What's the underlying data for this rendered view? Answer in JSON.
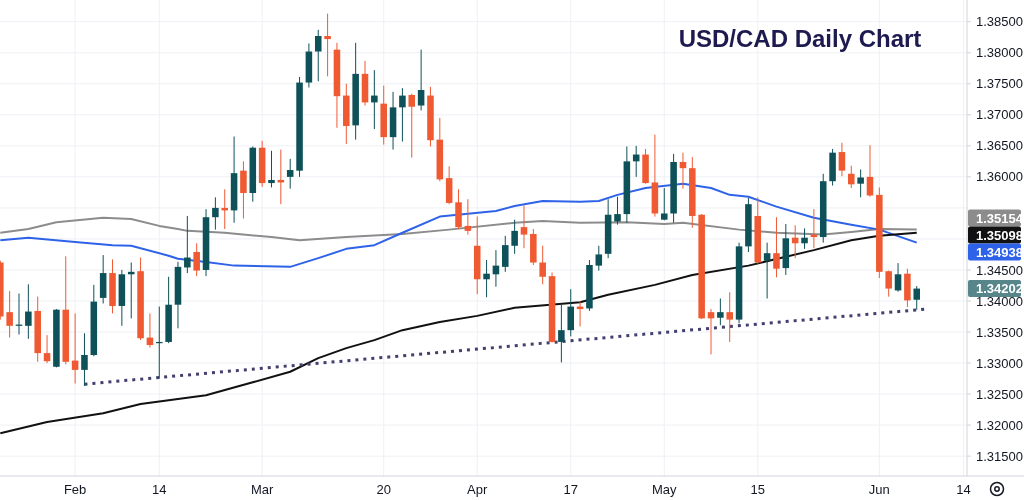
{
  "chart_data": {
    "type": "candlestick",
    "title": "USD/CAD Daily Chart",
    "categories": [
      null,
      null,
      null,
      null,
      null,
      null,
      null,
      null,
      "Feb",
      null,
      null,
      null,
      null,
      null,
      null,
      null,
      null,
      "14",
      null,
      null,
      null,
      null,
      null,
      null,
      null,
      null,
      null,
      null,
      "Mar",
      null,
      null,
      null,
      null,
      null,
      null,
      null,
      null,
      null,
      null,
      null,
      null,
      "20",
      null,
      null,
      null,
      null,
      null,
      null,
      null,
      null,
      null,
      "Apr",
      null,
      null,
      null,
      null,
      null,
      null,
      null,
      null,
      null,
      "17",
      null,
      null,
      null,
      null,
      null,
      null,
      null,
      null,
      null,
      "May",
      null,
      null,
      null,
      null,
      null,
      null,
      null,
      null,
      null,
      "15",
      null,
      null,
      null,
      null,
      null,
      null,
      null,
      null,
      null,
      null,
      null,
      null,
      "Jun",
      null,
      null,
      null,
      null,
      null,
      null,
      null,
      null,
      "14"
    ],
    "ohlc": [
      [
        1.3462,
        1.3465,
        1.337,
        1.3375
      ],
      [
        1.3382,
        1.3416,
        1.3341,
        1.336
      ],
      [
        1.336,
        1.3412,
        1.3346,
        1.3362
      ],
      [
        1.336,
        1.3427,
        1.3339,
        1.3383
      ],
      [
        1.3384,
        1.3407,
        1.3302,
        1.3316
      ],
      [
        1.3316,
        1.3345,
        1.33,
        1.3303
      ],
      [
        1.3294,
        1.3387,
        1.3293,
        1.3386
      ],
      [
        1.3386,
        1.3472,
        1.3298,
        1.3302
      ],
      [
        1.3304,
        1.338,
        1.3267,
        1.3289
      ],
      [
        1.3289,
        1.3348,
        1.3263,
        1.3313
      ],
      [
        1.3313,
        1.3426,
        1.3311,
        1.3399
      ],
      [
        1.3405,
        1.3474,
        1.3396,
        1.3445
      ],
      [
        1.3445,
        1.3467,
        1.338,
        1.3392
      ],
      [
        1.3392,
        1.345,
        1.336,
        1.3443
      ],
      [
        1.3443,
        1.3462,
        1.3372,
        1.3447
      ],
      [
        1.3448,
        1.347,
        1.3337,
        1.334
      ],
      [
        1.3341,
        1.338,
        1.3325,
        1.3329
      ],
      [
        1.3332,
        1.3391,
        1.3275,
        1.3334
      ],
      [
        1.3334,
        1.3439,
        1.3332,
        1.3394
      ],
      [
        1.3394,
        1.3463,
        1.3356,
        1.3455
      ],
      [
        1.3454,
        1.3537,
        1.3445,
        1.347
      ],
      [
        1.3479,
        1.3493,
        1.344,
        1.3449
      ],
      [
        1.345,
        1.3548,
        1.344,
        1.3535
      ],
      [
        1.3535,
        1.3567,
        1.3515,
        1.355
      ],
      [
        1.355,
        1.358,
        1.3516,
        1.3546
      ],
      [
        1.3546,
        1.3665,
        1.3526,
        1.3606
      ],
      [
        1.361,
        1.3625,
        1.3533,
        1.3574
      ],
      [
        1.3574,
        1.3649,
        1.356,
        1.3647
      ],
      [
        1.3647,
        1.3658,
        1.3584,
        1.359
      ],
      [
        1.359,
        1.3642,
        1.3583,
        1.3595
      ],
      [
        1.3595,
        1.3644,
        1.3556,
        1.3591
      ],
      [
        1.36,
        1.3629,
        1.3581,
        1.3611
      ],
      [
        1.361,
        1.3761,
        1.36,
        1.3752
      ],
      [
        1.3752,
        1.3815,
        1.3744,
        1.3802
      ],
      [
        1.3802,
        1.3837,
        1.3754,
        1.3827
      ],
      [
        1.3827,
        1.3863,
        1.3762,
        1.3822
      ],
      [
        1.3805,
        1.3816,
        1.3679,
        1.373
      ],
      [
        1.3731,
        1.375,
        1.3653,
        1.3682
      ],
      [
        1.3683,
        1.3816,
        1.366,
        1.3766
      ],
      [
        1.3766,
        1.3787,
        1.3715,
        1.372
      ],
      [
        1.372,
        1.3772,
        1.3677,
        1.3731
      ],
      [
        1.3718,
        1.3747,
        1.3652,
        1.3664
      ],
      [
        1.3664,
        1.3737,
        1.3644,
        1.3712
      ],
      [
        1.3712,
        1.3743,
        1.3657,
        1.3731
      ],
      [
        1.3732,
        1.3734,
        1.3631,
        1.3713
      ],
      [
        1.3715,
        1.3805,
        1.3707,
        1.374
      ],
      [
        1.3731,
        1.3745,
        1.3649,
        1.3659
      ],
      [
        1.366,
        1.3695,
        1.3593,
        1.3596
      ],
      [
        1.3598,
        1.3617,
        1.3556,
        1.3558
      ],
      [
        1.3559,
        1.358,
        1.3516,
        1.3519
      ],
      [
        1.3521,
        1.3564,
        1.3507,
        1.3513
      ],
      [
        1.3489,
        1.3536,
        1.3411,
        1.3435
      ],
      [
        1.3435,
        1.3466,
        1.3406,
        1.3444
      ],
      [
        1.3443,
        1.3482,
        1.3423,
        1.3457
      ],
      [
        1.3455,
        1.3505,
        1.3447,
        1.349
      ],
      [
        1.3489,
        1.3531,
        1.3476,
        1.3513
      ],
      [
        1.3519,
        1.3554,
        1.3485,
        1.3507
      ],
      [
        1.3508,
        1.3516,
        1.3458,
        1.3462
      ],
      [
        1.3462,
        1.3489,
        1.3427,
        1.3439
      ],
      [
        1.344,
        1.3446,
        1.3333,
        1.3334
      ],
      [
        1.3334,
        1.3396,
        1.3301,
        1.3353
      ],
      [
        1.3353,
        1.3419,
        1.3343,
        1.3391
      ],
      [
        1.3391,
        1.3399,
        1.3359,
        1.3387
      ],
      [
        1.3388,
        1.3466,
        1.3384,
        1.3458
      ],
      [
        1.3457,
        1.3489,
        1.3449,
        1.3475
      ],
      [
        1.3476,
        1.3564,
        1.3469,
        1.3539
      ],
      [
        1.3528,
        1.3568,
        1.3523,
        1.354
      ],
      [
        1.354,
        1.3649,
        1.3526,
        1.3625
      ],
      [
        1.3625,
        1.365,
        1.36,
        1.3636
      ],
      [
        1.3636,
        1.3645,
        1.3589,
        1.359
      ],
      [
        1.3591,
        1.3668,
        1.3536,
        1.3541
      ],
      [
        1.3531,
        1.3582,
        1.353,
        1.3541
      ],
      [
        1.3541,
        1.3637,
        1.3526,
        1.3624
      ],
      [
        1.3624,
        1.3639,
        1.3581,
        1.3614
      ],
      [
        1.3614,
        1.3632,
        1.3518,
        1.3537
      ],
      [
        1.3539,
        1.354,
        1.3371,
        1.3372
      ],
      [
        1.3382,
        1.3387,
        1.3314,
        1.3372
      ],
      [
        1.3373,
        1.3404,
        1.3361,
        1.3382
      ],
      [
        1.3382,
        1.3414,
        1.3334,
        1.337
      ],
      [
        1.337,
        1.3494,
        1.3364,
        1.3488
      ],
      [
        1.3488,
        1.3566,
        1.3479,
        1.3556
      ],
      [
        1.3537,
        1.3567,
        1.346,
        1.3462
      ],
      [
        1.3465,
        1.3494,
        1.3404,
        1.3477
      ],
      [
        1.3477,
        1.3535,
        1.3438,
        1.3452
      ],
      [
        1.3453,
        1.3524,
        1.3442,
        1.3501
      ],
      [
        1.3502,
        1.3522,
        1.3469,
        1.3493
      ],
      [
        1.3493,
        1.3517,
        1.3484,
        1.3502
      ],
      [
        1.3507,
        1.3548,
        1.3485,
        1.3503
      ],
      [
        1.3503,
        1.3605,
        1.3494,
        1.3593
      ],
      [
        1.3593,
        1.3645,
        1.3586,
        1.3639
      ],
      [
        1.364,
        1.3655,
        1.3601,
        1.361
      ],
      [
        1.3605,
        1.3618,
        1.3582,
        1.3588
      ],
      [
        1.3589,
        1.3612,
        1.3567,
        1.3599
      ],
      [
        1.36,
        1.3651,
        1.3568,
        1.357
      ],
      [
        1.3571,
        1.3583,
        1.3437,
        1.3447
      ],
      [
        1.3448,
        1.3449,
        1.3407,
        1.342
      ],
      [
        1.3417,
        1.3461,
        1.3415,
        1.3443
      ],
      [
        1.3444,
        1.3452,
        1.339,
        1.3401
      ],
      [
        1.3402,
        1.3424,
        1.3386,
        1.342
      ],
      null,
      null,
      null,
      null,
      null
    ],
    "colors": [
      "#ef5a33",
      "#ef5a33",
      "#0e5158",
      "#0e5158",
      "#ef5a33",
      "#ef5a33",
      "#0e5158",
      "#ef5a33",
      "#ef5a33",
      "#0e5158",
      "#0e5158",
      "#0e5158",
      "#ef5a33",
      "#0e5158",
      "#0e5158",
      "#ef5a33",
      "#ef5a33",
      "#0e5158",
      "#0e5158",
      "#0e5158",
      "#0e5158",
      "#ef5a33",
      "#0e5158",
      "#0e5158",
      "#ef5a33",
      "#0e5158",
      "#ef5a33",
      "#0e5158",
      "#ef5a33",
      "#0e5158",
      "#ef5a33",
      "#0e5158",
      "#0e5158",
      "#0e5158",
      "#0e5158",
      "#ef5a33",
      "#ef5a33",
      "#ef5a33",
      "#0e5158",
      "#ef5a33",
      "#0e5158",
      "#ef5a33",
      "#0e5158",
      "#0e5158",
      "#ef5a33",
      "#0e5158",
      "#ef5a33",
      "#ef5a33",
      "#ef5a33",
      "#ef5a33",
      "#ef5a33",
      "#ef5a33",
      "#0e5158",
      "#0e5158",
      "#0e5158",
      "#0e5158",
      "#ef5a33",
      "#ef5a33",
      "#ef5a33",
      "#ef5a33",
      "#0e5158",
      "#0e5158",
      "#ef5a33",
      "#0e5158",
      "#0e5158",
      "#0e5158",
      "#0e5158",
      "#0e5158",
      "#0e5158",
      "#ef5a33",
      "#ef5a33",
      "#0e5158",
      "#0e5158",
      "#ef5a33",
      "#ef5a33",
      "#ef5a33",
      "#ef5a33",
      "#0e5158",
      "#ef5a33",
      "#0e5158",
      "#0e5158",
      "#ef5a33",
      "#0e5158",
      "#ef5a33",
      "#0e5158",
      "#ef5a33",
      "#0e5158",
      "#ef5a33",
      "#0e5158",
      "#0e5158",
      "#ef5a33",
      "#ef5a33",
      "#0e5158",
      "#ef5a33",
      "#ef5a33",
      "#ef5a33",
      "#0e5158",
      "#ef5a33",
      "#0e5158",
      null,
      null,
      null,
      null,
      null
    ],
    "series": [
      {
        "type": "line",
        "color": "#8c8c8c",
        "values": [
          1.351,
          null,
          null,
          1.3516,
          null,
          null,
          1.3527,
          null,
          null,
          null,
          null,
          1.3534,
          null,
          null,
          1.3532,
          null,
          null,
          1.3521,
          null,
          1.3516,
          1.3513,
          null,
          null,
          null,
          1.351,
          null,
          null,
          null,
          null,
          1.3503,
          null,
          null,
          1.3498,
          null,
          null,
          null,
          null,
          1.3503,
          null,
          null,
          null,
          null,
          null,
          1.3508,
          null,
          null,
          null,
          null,
          1.3515,
          null,
          null,
          null,
          null,
          null,
          null,
          1.3526,
          null,
          null,
          1.3529,
          null,
          null,
          null,
          1.3526,
          null,
          null,
          null,
          null,
          1.3527,
          null,
          null,
          null,
          1.3524,
          null,
          1.3526,
          null,
          null,
          null,
          null,
          null,
          1.3515,
          null,
          null,
          null,
          1.351,
          null,
          null,
          null,
          null,
          1.3507,
          null,
          null,
          1.3511,
          null,
          null,
          1.3516,
          null,
          null,
          null,
          1.3515,
          null,
          null,
          null,
          null,
          null
        ]
      },
      {
        "type": "line",
        "color": "#2e62e8",
        "values": [
          1.3498,
          null,
          null,
          1.3502,
          null,
          null,
          null,
          null,
          1.3495,
          null,
          null,
          null,
          1.349,
          null,
          1.3489,
          null,
          null,
          null,
          1.3473,
          1.3468,
          null,
          null,
          1.3463,
          null,
          null,
          1.3457,
          null,
          null,
          null,
          null,
          null,
          1.3455,
          null,
          null,
          1.3469,
          null,
          null,
          1.3484,
          null,
          null,
          1.349,
          null,
          null,
          1.351,
          null,
          null,
          null,
          1.3536,
          null,
          null,
          null,
          null,
          null,
          1.3545,
          null,
          1.3553,
          null,
          null,
          1.3561,
          null,
          null,
          null,
          1.356,
          null,
          1.3561,
          null,
          1.3571,
          null,
          null,
          1.3582,
          null,
          null,
          null,
          1.3589,
          null,
          null,
          1.3582,
          null,
          1.3571,
          null,
          1.3568,
          null,
          null,
          1.3552,
          null,
          null,
          null,
          1.3534,
          null,
          null,
          null,
          1.3523,
          null,
          null,
          1.3515,
          null,
          null,
          null,
          1.3494,
          null,
          null,
          null,
          null,
          null
        ]
      },
      {
        "type": "line",
        "color": "#111111",
        "values": [
          1.3187,
          null,
          null,
          null,
          null,
          1.3205,
          null,
          null,
          null,
          null,
          null,
          1.3219,
          null,
          null,
          null,
          1.3234,
          null,
          null,
          null,
          1.3242,
          null,
          null,
          1.3248,
          null,
          null,
          null,
          null,
          1.3269,
          null,
          null,
          null,
          1.3286,
          null,
          null,
          1.3308,
          null,
          null,
          1.3324,
          null,
          null,
          1.3337,
          null,
          null,
          1.3353,
          null,
          null,
          null,
          1.3366,
          null,
          null,
          null,
          1.3376,
          null,
          null,
          null,
          1.3389,
          null,
          null,
          null,
          null,
          null,
          null,
          1.3398,
          null,
          null,
          1.341,
          null,
          null,
          null,
          null,
          1.3426,
          null,
          null,
          null,
          1.3442,
          null,
          null,
          null,
          null,
          null,
          1.3457,
          null,
          null,
          null,
          null,
          null,
          null,
          1.3482,
          null,
          null,
          null,
          1.3498,
          null,
          null,
          1.3505,
          null,
          null,
          null,
          1.351,
          null,
          null,
          null,
          null,
          null
        ]
      },
      {
        "type": "line",
        "color": "#433f6e",
        "line_style": "dotted",
        "values": [
          null,
          null,
          null,
          null,
          null,
          null,
          null,
          null,
          null,
          1.3266,
          null,
          null,
          null,
          null,
          null,
          null,
          null,
          null,
          null,
          null,
          null,
          null,
          null,
          null,
          null,
          null,
          null,
          null,
          null,
          null,
          null,
          null,
          null,
          null,
          null,
          null,
          null,
          null,
          null,
          null,
          null,
          null,
          null,
          null,
          null,
          null,
          null,
          null,
          null,
          null,
          null,
          null,
          null,
          null,
          null,
          null,
          null,
          null,
          null,
          null,
          null,
          null,
          null,
          null,
          null,
          null,
          null,
          null,
          null,
          null,
          null,
          null,
          null,
          null,
          null,
          null,
          null,
          null,
          null,
          null,
          null,
          null,
          null,
          null,
          null,
          null,
          null,
          null,
          null,
          null,
          null,
          null,
          null,
          null,
          null,
          null,
          null,
          null,
          null,
          1.3387,
          null,
          null,
          null,
          null
        ]
      }
    ],
    "annotations": [
      "1.35154",
      "1.35098",
      "1.34938",
      "1.34202"
    ],
    "ylim": [
      1.3118,
      1.3885
    ],
    "yticks": [
      {
        "value": 1.315,
        "label": "1.31500"
      },
      {
        "value": 1.32,
        "label": "1.32000"
      },
      {
        "value": 1.325,
        "label": "1.32500"
      },
      {
        "value": 1.33,
        "label": "1.33000"
      },
      {
        "value": 1.335,
        "label": "1.33500"
      },
      {
        "value": 1.34,
        "label": "1.34000"
      },
      {
        "value": 1.345,
        "label": "1.34500"
      },
      {
        "value": 1.35,
        "label": null
      },
      {
        "value": 1.355,
        "label": null
      },
      {
        "value": 1.36,
        "label": "1.36000"
      },
      {
        "value": 1.365,
        "label": "1.36500"
      },
      {
        "value": 1.37,
        "label": "1.37000"
      },
      {
        "value": 1.375,
        "label": "1.37500"
      },
      {
        "value": 1.38,
        "label": "1.38000"
      },
      {
        "value": 1.385,
        "label": "1.38500"
      }
    ],
    "grid": true
  }
}
